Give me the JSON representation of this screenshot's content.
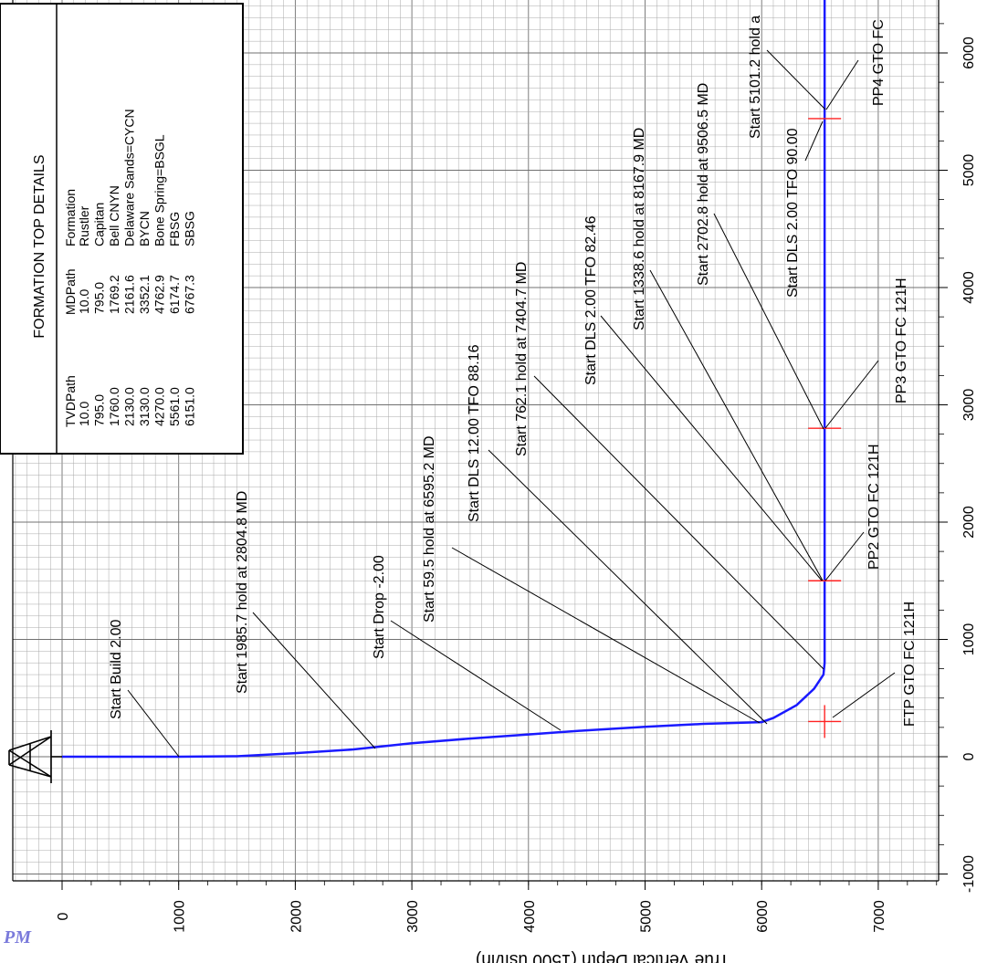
{
  "corner_label": "PM",
  "axis": {
    "x_title": "True Vertical Depth (1500 usft/in)",
    "x_ticks": [
      "0",
      "1000",
      "2000",
      "3000",
      "4000",
      "5000",
      "6000",
      "7000"
    ],
    "y_ticks": [
      "-1000",
      "0",
      "1000",
      "2000",
      "3000",
      "4000",
      "5000",
      "6000"
    ]
  },
  "formation_table": {
    "title": "FORMATION TOP DETAILS",
    "columns": [
      "TVDPath",
      "MDPath",
      "Formation"
    ],
    "rows": [
      [
        "10.0",
        "10.0",
        "Rustler"
      ],
      [
        "795.0",
        "795.0",
        "Capitan"
      ],
      [
        "1760.0",
        "1769.2",
        "Bell CNYN"
      ],
      [
        "2130.0",
        "2161.6",
        "Delaware Sands=CYCN"
      ],
      [
        "3130.0",
        "3352.1",
        "BYCN"
      ],
      [
        "4270.0",
        "4762.9",
        "Bone Spring=BSGL"
      ],
      [
        "5561.0",
        "6174.7",
        "FBSG"
      ],
      [
        "6151.0",
        "6767.3",
        "SBSG"
      ]
    ]
  },
  "annotations": {
    "start_build": "Start Build 2.00",
    "start_hold_1985": "Start 1985.7 hold at 2804.8 MD",
    "start_drop": "Start Drop -2.00",
    "start_hold_59": "Start 59.5 hold at 6595.2 MD",
    "start_dls_12": "Start DLS 12.00 TFO 88.16",
    "start_hold_762": "Start 762.1 hold at 7404.7 MD",
    "start_dls_2_8246": "Start DLS 2.00 TFO 82.46",
    "start_hold_1338": "Start 1338.6 hold at 8167.9 MD",
    "start_hold_2702": "Start 2702.8 hold at 9506.5 MD",
    "start_dls_2_90": "Start DLS 2.00 TFO 90.00",
    "start_hold_5101": "Start 5101.2 hold a",
    "ftp": "FTP GTO FC 121H",
    "pp2": "PP2 GTO FC 121H",
    "pp3": "PP3 GTO FC 121H",
    "pp4": "PP4 GTO FC"
  },
  "colors": {
    "wellbore": "#1a1aff",
    "target_marker": "#ff2222",
    "grid": "#a8a8a8",
    "grid_major": "#707070"
  },
  "wellbore_path_points": [
    [
      0,
      0
    ],
    [
      1000,
      0
    ],
    [
      1500,
      4
    ],
    [
      2000,
      30
    ],
    [
      2500,
      62
    ],
    [
      3000,
      115
    ],
    [
      3500,
      155
    ],
    [
      4000,
      190
    ],
    [
      4500,
      225
    ],
    [
      5000,
      255
    ],
    [
      5500,
      280
    ],
    [
      6000,
      295
    ],
    [
      6100,
      330
    ],
    [
      6300,
      440
    ],
    [
      6450,
      580
    ],
    [
      6530,
      700
    ],
    [
      6540,
      800
    ],
    [
      6540,
      1500
    ],
    [
      6540,
      2800
    ],
    [
      6540,
      5440
    ],
    [
      6540,
      6700
    ]
  ],
  "target_points": [
    {
      "tvd": 6540,
      "vs": 300
    },
    {
      "tvd": 6540,
      "vs": 1500
    },
    {
      "tvd": 6540,
      "vs": 2800
    },
    {
      "tvd": 6540,
      "vs": 5440
    }
  ]
}
